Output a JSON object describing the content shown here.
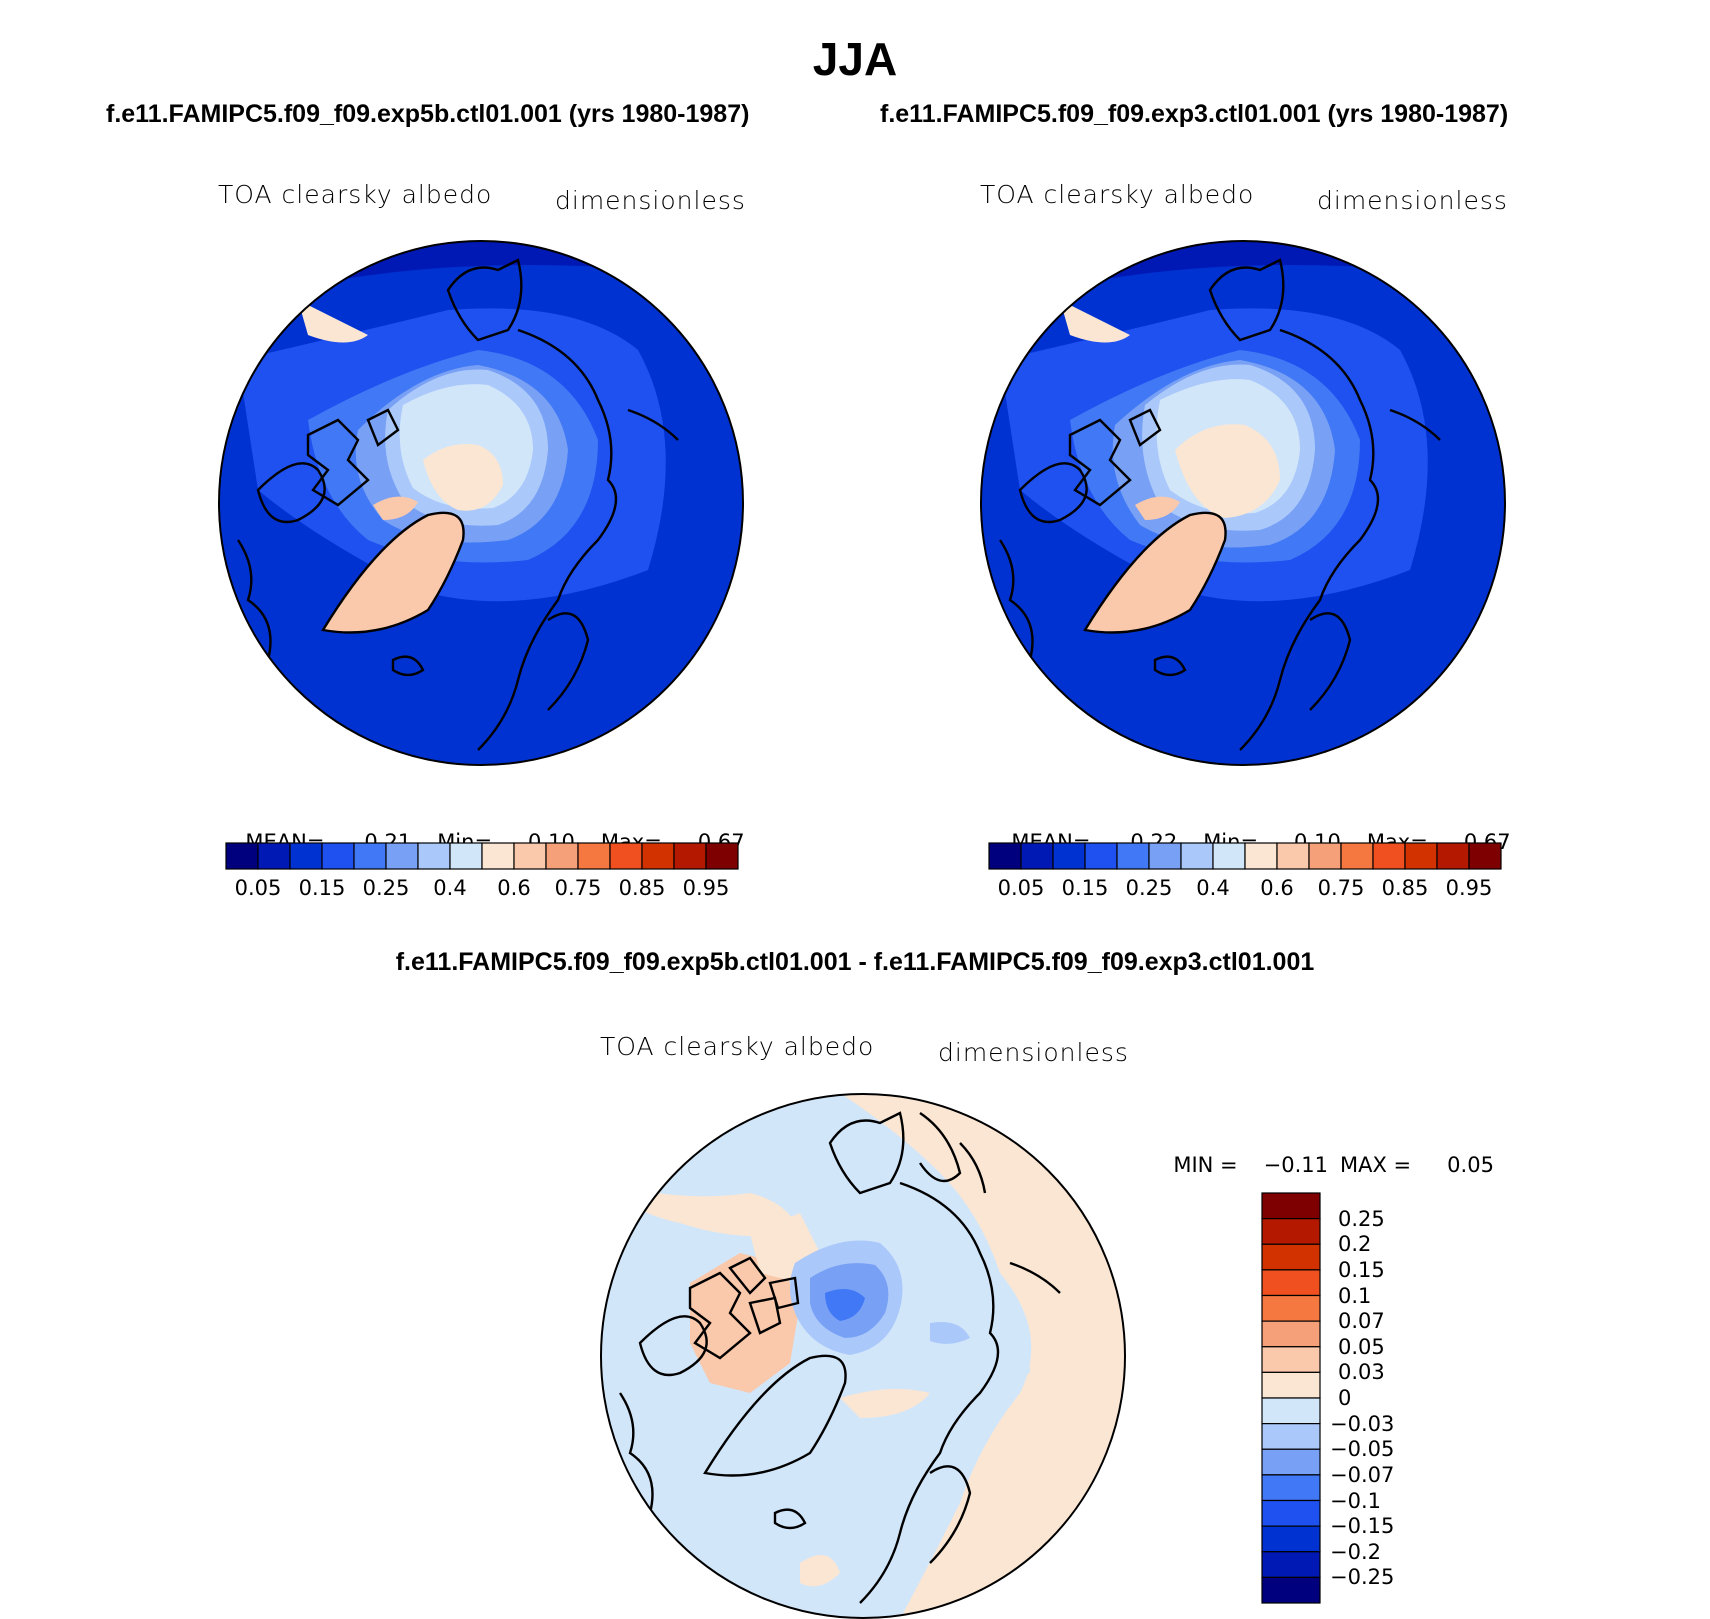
{
  "title": "JJA",
  "case_left": "f.e11.FAMIPC5.f09_f09.exp5b.ctl01.001 (yrs 1980-1987)",
  "case_right": "f.e11.FAMIPC5.f09_f09.exp3.ctl01.001 (yrs 1980-1987)",
  "diff_header": "f.e11.FAMIPC5.f09_f09.exp5b.ctl01.001 - f.e11.FAMIPC5.f09_f09.exp3.ctl01.001",
  "panels": [
    {
      "variable": "TOA clearsky albedo",
      "units": "dimensionless",
      "stats": {
        "mean_label": "MEAN=",
        "mean": "0.21",
        "min_label": "Min=",
        "min": "0.10",
        "max_label": "Max=",
        "max": "0.67"
      }
    },
    {
      "variable": "TOA clearsky albedo",
      "units": "dimensionless",
      "stats": {
        "mean_label": "MEAN=",
        "mean": "0.22",
        "min_label": "Min=",
        "min": "0.10",
        "max_label": "Max=",
        "max": "0.67"
      }
    },
    {
      "variable": "TOA clearsky albedo",
      "units": "dimensionless",
      "stats": {
        "min_label": "MIN =",
        "min": "−0.11",
        "max_label": "MAX =",
        "max": "0.05"
      }
    }
  ],
  "colorbar_abs": {
    "colors": [
      "#00007f",
      "#0019b4",
      "#0032d2",
      "#1f50f0",
      "#4178f5",
      "#78a0f5",
      "#aac8fa",
      "#d2e6fa",
      "#fae6d2",
      "#fac8aa",
      "#f5a078",
      "#f57841",
      "#f0501f",
      "#d23200",
      "#b41900",
      "#7f0000"
    ],
    "labels": [
      "0.05",
      "0.15",
      "0.25",
      "0.4",
      "0.6",
      "0.75",
      "0.85",
      "0.95"
    ]
  },
  "colorbar_diff": {
    "colors": [
      "#7f0000",
      "#b41900",
      "#d23200",
      "#f0501f",
      "#f57841",
      "#f5a078",
      "#fac8aa",
      "#fae6d2",
      "#d2e6fa",
      "#aac8fa",
      "#78a0f5",
      "#4178f5",
      "#1f50f0",
      "#0032d2",
      "#0019b4",
      "#00007f"
    ],
    "labels": [
      "0.25",
      "0.2",
      "0.15",
      "0.1",
      "0.07",
      "0.05",
      "0.03",
      "0",
      "−0.03",
      "−0.05",
      "−0.07",
      "−0.1",
      "−0.15",
      "−0.2",
      "−0.25"
    ]
  }
}
